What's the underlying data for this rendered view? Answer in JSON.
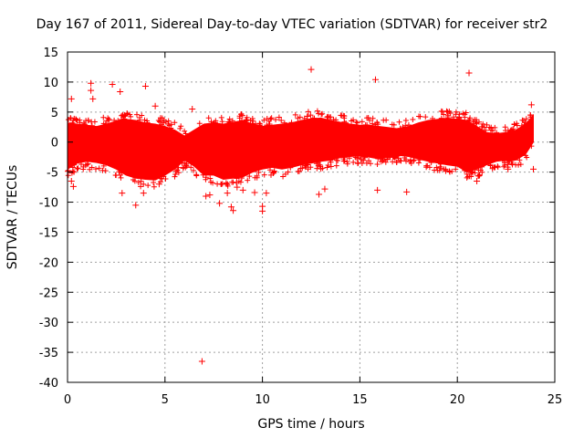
{
  "chart_data": {
    "type": "scatter",
    "title": "Day 167 of 2011, Sidereal Day-to-day VTEC variation (SDTVAR) for receiver str2",
    "xlabel": "GPS time / hours",
    "ylabel": "SDTVAR / TECUs",
    "xlim": [
      0,
      25
    ],
    "ylim": [
      -40,
      15
    ],
    "xticks": [
      0,
      5,
      10,
      15,
      20,
      25
    ],
    "yticks": [
      15,
      10,
      5,
      0,
      -5,
      -10,
      -15,
      -20,
      -25,
      -30,
      -35,
      -40
    ],
    "grid": true,
    "marker": "+",
    "color": "#ff0000",
    "series": [
      {
        "name": "SDTVAR",
        "band": {
          "x": [
            0.0,
            0.5,
            1.0,
            1.5,
            2.0,
            2.5,
            3.0,
            3.5,
            4.0,
            4.5,
            5.0,
            5.5,
            6.0,
            6.5,
            7.0,
            7.5,
            8.0,
            8.5,
            9.0,
            9.5,
            10.0,
            10.5,
            11.0,
            11.5,
            12.0,
            12.5,
            13.0,
            13.5,
            14.0,
            14.5,
            15.0,
            15.5,
            16.0,
            16.5,
            17.0,
            17.5,
            18.0,
            18.5,
            19.0,
            19.5,
            20.0,
            20.5,
            21.0,
            21.5,
            22.0,
            22.5,
            23.0,
            23.5,
            23.9
          ],
          "upper": [
            3.2,
            3.0,
            2.8,
            2.6,
            3.0,
            3.5,
            3.8,
            3.6,
            3.2,
            3.0,
            2.6,
            2.0,
            1.0,
            2.0,
            3.0,
            3.2,
            3.0,
            3.3,
            3.6,
            3.0,
            2.6,
            2.8,
            3.0,
            3.2,
            3.6,
            3.9,
            4.0,
            3.6,
            3.3,
            3.0,
            2.8,
            2.8,
            2.6,
            2.4,
            2.2,
            2.6,
            3.2,
            3.6,
            3.8,
            4.0,
            3.8,
            3.6,
            2.6,
            1.6,
            1.4,
            1.6,
            2.0,
            3.0,
            4.5
          ],
          "lower": [
            -4.5,
            -3.5,
            -3.2,
            -3.4,
            -3.8,
            -4.5,
            -5.5,
            -6.0,
            -6.2,
            -6.3,
            -5.5,
            -4.5,
            -3.0,
            -4.0,
            -5.5,
            -5.5,
            -6.2,
            -6.0,
            -5.8,
            -5.0,
            -4.5,
            -4.2,
            -4.5,
            -4.2,
            -3.8,
            -3.5,
            -3.2,
            -3.0,
            -2.6,
            -2.4,
            -2.3,
            -2.5,
            -2.8,
            -2.5,
            -2.2,
            -2.4,
            -2.8,
            -3.2,
            -3.5,
            -3.8,
            -4.0,
            -5.0,
            -4.5,
            -3.8,
            -3.2,
            -3.0,
            -3.0,
            -2.0,
            0.0
          ]
        },
        "outliers": [
          [
            0.2,
            7.2
          ],
          [
            0.2,
            -6.5
          ],
          [
            0.3,
            -7.4
          ],
          [
            1.2,
            9.8
          ],
          [
            1.2,
            8.6
          ],
          [
            1.3,
            7.2
          ],
          [
            2.3,
            9.6
          ],
          [
            2.7,
            8.4
          ],
          [
            2.8,
            -8.5
          ],
          [
            3.5,
            -10.5
          ],
          [
            3.9,
            -8.5
          ],
          [
            4.0,
            9.3
          ],
          [
            4.5,
            6.0
          ],
          [
            4.7,
            -7.0
          ],
          [
            6.4,
            5.5
          ],
          [
            6.9,
            -36.5
          ],
          [
            7.1,
            -9.0
          ],
          [
            7.3,
            -8.8
          ],
          [
            7.8,
            -10.2
          ],
          [
            8.2,
            -8.5
          ],
          [
            8.4,
            -10.8
          ],
          [
            8.5,
            -11.4
          ],
          [
            8.7,
            -7.5
          ],
          [
            9.0,
            -8.0
          ],
          [
            9.6,
            -8.4
          ],
          [
            10.0,
            -10.7
          ],
          [
            10.0,
            -11.5
          ],
          [
            10.2,
            -8.5
          ],
          [
            12.5,
            12.1
          ],
          [
            12.9,
            -8.7
          ],
          [
            13.2,
            -7.8
          ],
          [
            15.8,
            10.4
          ],
          [
            15.9,
            -8.0
          ],
          [
            17.4,
            -8.3
          ],
          [
            20.6,
            11.5
          ],
          [
            21.0,
            -6.5
          ],
          [
            22.6,
            -4.5
          ],
          [
            23.8,
            6.2
          ],
          [
            23.9,
            -4.5
          ]
        ]
      }
    ]
  }
}
